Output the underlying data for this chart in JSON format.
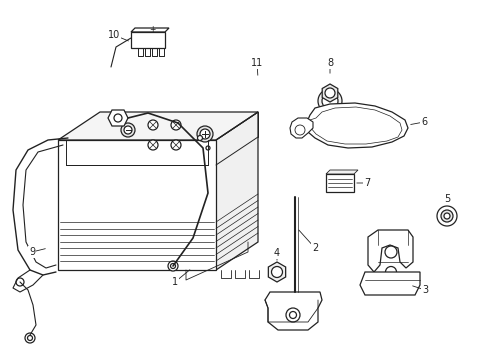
{
  "background_color": "#ffffff",
  "line_color": "#222222",
  "lw": 0.9
}
